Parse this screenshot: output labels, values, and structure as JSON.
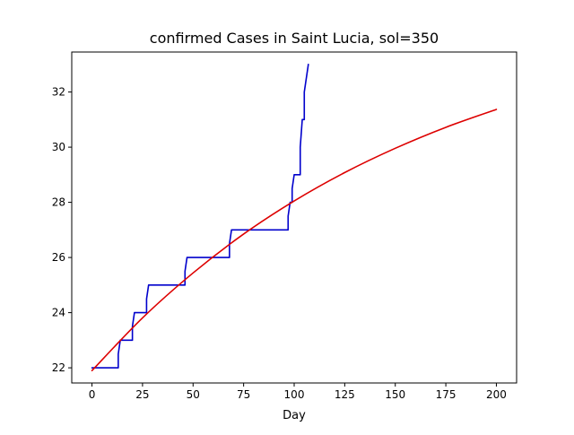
{
  "chart_data": {
    "type": "line",
    "title": "confirmed Cases in Saint Lucia, sol=350",
    "xlabel": "Day",
    "ylabel": "",
    "xlim": [
      -10,
      210
    ],
    "ylim": [
      21.45,
      33.45
    ],
    "x_ticks": [
      0,
      25,
      50,
      75,
      100,
      125,
      150,
      175,
      200
    ],
    "y_ticks": [
      22,
      24,
      26,
      28,
      30,
      32
    ],
    "grid": false,
    "legend": "none",
    "series": [
      {
        "color": "#0000cc",
        "style": "step",
        "x": [
          0,
          13,
          13,
          14,
          20,
          20,
          21,
          27,
          27,
          28,
          46,
          46,
          47,
          68,
          68,
          69,
          97,
          97,
          98,
          99,
          99,
          100,
          103,
          103,
          104,
          105,
          105,
          107
        ],
        "y": [
          22,
          22,
          22.5,
          23,
          23,
          23.5,
          24,
          24,
          24.5,
          25,
          25,
          25.5,
          26,
          26,
          26.5,
          27,
          27,
          27.5,
          28,
          28,
          28.5,
          29,
          29,
          30,
          31,
          31,
          32,
          33
        ]
      },
      {
        "color": "#dd0000",
        "style": "smooth",
        "x": [
          0,
          25,
          50,
          75,
          100,
          125,
          150,
          175,
          200
        ],
        "y": [
          21.9,
          23.81,
          25.44,
          26.85,
          28.05,
          29.08,
          29.96,
          30.72,
          31.37
        ]
      }
    ]
  }
}
